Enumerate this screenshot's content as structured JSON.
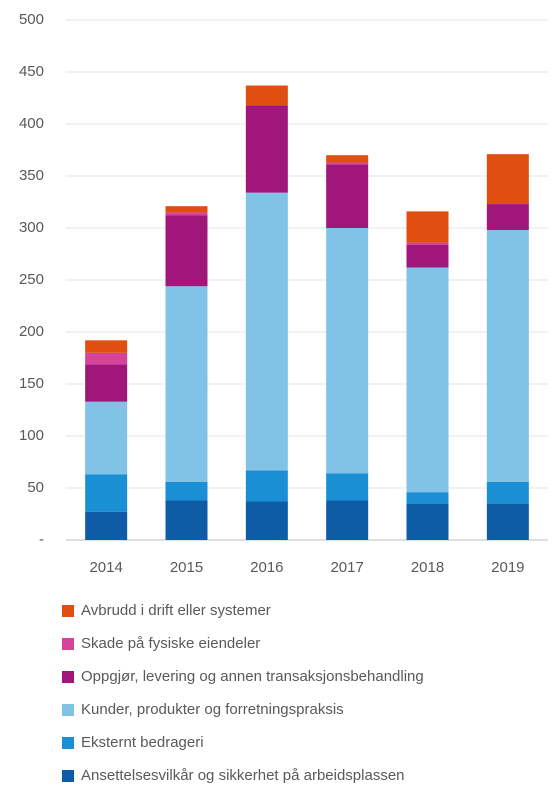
{
  "chart_data": {
    "type": "stacked_bar",
    "categories": [
      "2014",
      "2015",
      "2016",
      "2017",
      "2018",
      "2019"
    ],
    "series": [
      {
        "name": "Ansettelsesvilkår og sikkerhet på arbeidsplassen",
        "color": "#0f5ca6",
        "values": [
          27,
          38,
          37,
          38,
          35,
          35
        ]
      },
      {
        "name": "Eksternt bedrageri",
        "color": "#1b8fd3",
        "values": [
          36,
          18,
          30,
          26,
          11,
          21
        ]
      },
      {
        "name": "Kunder, produkter og forretningspraksis",
        "color": "#80c3e6",
        "values": [
          70,
          188,
          267,
          236,
          216,
          242
        ]
      },
      {
        "name": "Oppgjør, levering og annen transaksjonsbehandling",
        "color": "#a0167b",
        "values": [
          36,
          68,
          84,
          61,
          22,
          25
        ]
      },
      {
        "name": "Skade på fysiske eiendeler",
        "color": "#d6449a",
        "values": [
          11,
          3,
          0,
          2,
          2,
          0
        ]
      },
      {
        "name": "Avbrudd i drift eller systemer",
        "color": "#e14f10",
        "values": [
          12,
          6,
          19,
          7,
          30,
          48
        ]
      }
    ],
    "ylim": [
      0,
      500
    ],
    "yticks": [
      {
        "value": 0,
        "label": "-"
      },
      50,
      100,
      150,
      200,
      250,
      300,
      350,
      400,
      450,
      500
    ],
    "grid": true,
    "legend": "bottom"
  }
}
